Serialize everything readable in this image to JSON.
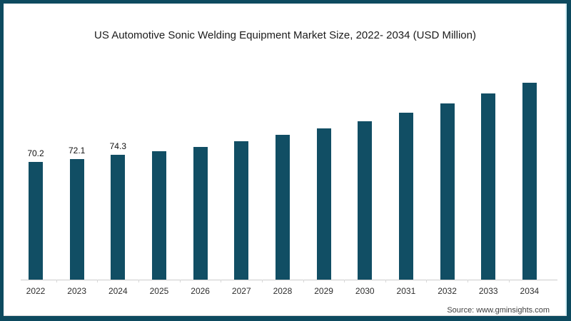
{
  "title": "US Automotive Sonic Welding Equipment Market Size, 2022- 2034 (USD Million)",
  "source": "Source: www.gminsights.com",
  "colors": {
    "frame_border": "#0d4a5f",
    "bar": "#114e64",
    "axis_line": "#cccccc",
    "right_accent": "#d5eff6",
    "title_text": "#1b1b1b"
  },
  "chart_data": {
    "type": "bar",
    "title": "US Automotive Sonic Welding Equipment Market Size, 2022- 2034 (USD Million)",
    "xlabel": "",
    "ylabel": "",
    "categories": [
      "2022",
      "2023",
      "2024",
      "2025",
      "2026",
      "2027",
      "2028",
      "2029",
      "2030",
      "2031",
      "2032",
      "2033",
      "2034"
    ],
    "values": [
      70.2,
      72.1,
      74.3,
      76.5,
      79.1,
      82.5,
      86.3,
      90.2,
      94.4,
      99.4,
      105.2,
      111.1,
      117.6
    ],
    "data_labels": [
      "70.2",
      "72.1",
      "74.3",
      "",
      "",
      "",
      "",
      "",
      "",
      "",
      "",
      "",
      ""
    ],
    "bar_color": "#114e64",
    "ylim": [
      0,
      130
    ],
    "grid": false,
    "legend": false,
    "note": "Only 2022-2024 bars carry printed data labels; later values estimated from bar heights"
  }
}
